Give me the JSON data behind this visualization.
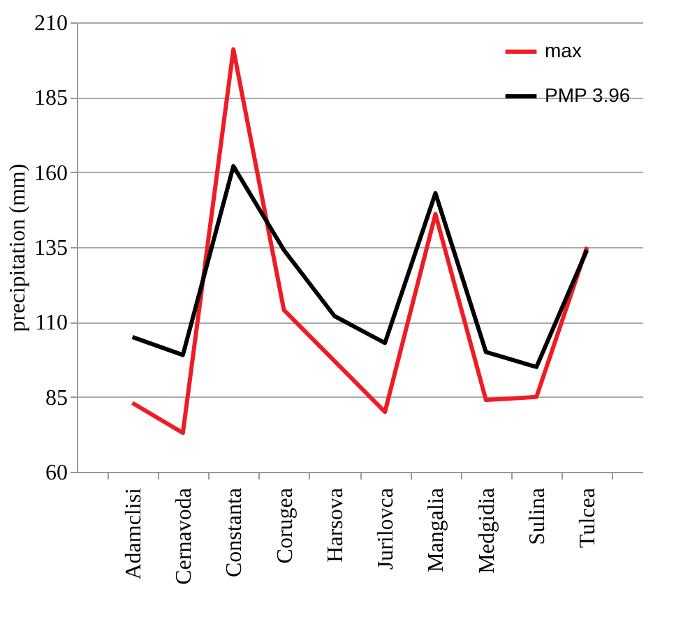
{
  "chart_data": {
    "type": "line",
    "ylabel": "precipitation (mm)",
    "categories": [
      "Adamclisi",
      "Cernavoda",
      "Constanta",
      "Corugea",
      "Harsova",
      "Jurilovca",
      "Mangalia",
      "Medgidia",
      "Sulina",
      "Tulcea"
    ],
    "series": [
      {
        "name": "max",
        "color": "#ee1c25",
        "values": [
          83,
          73,
          201,
          114,
          97,
          80,
          146,
          84,
          85,
          135
        ]
      },
      {
        "name": "PMP 3.96",
        "color": "#000000",
        "values": [
          105,
          99,
          162,
          134,
          112,
          103,
          153,
          100,
          95,
          134
        ]
      }
    ],
    "ylim": [
      60,
      210
    ],
    "yticks": [
      60,
      85,
      110,
      135,
      160,
      185,
      210
    ],
    "grid": "y",
    "legend": "top right",
    "marker": "none",
    "line_style": "solid"
  }
}
